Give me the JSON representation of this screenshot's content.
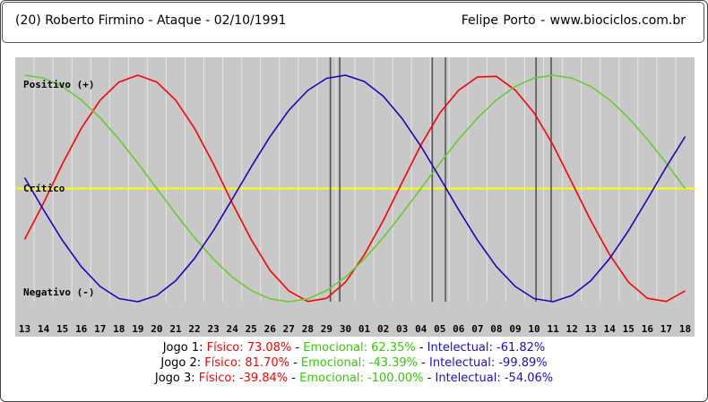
{
  "header": {
    "left": "(20)  Roberto Firmino - Ataque -  02/10/1991",
    "right": "Felipe Porto  -  www.biociclos.com.br"
  },
  "chart_data": {
    "type": "line",
    "x": [
      "13",
      "14",
      "15",
      "16",
      "17",
      "18",
      "19",
      "20",
      "21",
      "22",
      "23",
      "24",
      "25",
      "26",
      "27",
      "28",
      "29",
      "30",
      "01",
      "02",
      "03",
      "04",
      "05",
      "06",
      "07",
      "08",
      "09",
      "10",
      "11",
      "12",
      "13",
      "14",
      "15",
      "16",
      "17",
      "18"
    ],
    "labels": {
      "top": "Positivo (+)",
      "middle": "Crítico",
      "bottom": "Negativo (-)"
    },
    "ylim": [
      -100,
      100
    ],
    "grid": true,
    "series": [
      {
        "key": "fisico",
        "color": "#ff0000",
        "values": [
          -45.0,
          -12.8,
          21.7,
          53.1,
          78.0,
          94.0,
          100.0,
          94.0,
          78.0,
          53.1,
          21.7,
          -12.8,
          -45.0,
          -72.4,
          -90.4,
          -99.8,
          -97.0,
          -82.8,
          -58.6,
          -28.4,
          5.2,
          38.4,
          66.7,
          86.7,
          98.5,
          99.0,
          86.7,
          66.7,
          38.4,
          5.2,
          -28.4,
          -58.6,
          -82.8,
          -97.0,
          -99.8,
          -90.4
        ]
      },
      {
        "key": "emocional",
        "color": "#66cc33",
        "values": [
          100.0,
          97.5,
          90.1,
          78.2,
          62.3,
          43.4,
          22.3,
          0.0,
          -22.3,
          -43.4,
          -62.3,
          -78.2,
          -90.1,
          -97.5,
          -100.0,
          -97.5,
          -90.1,
          -78.2,
          -62.3,
          -43.4,
          -22.3,
          0.0,
          22.3,
          43.4,
          62.3,
          78.2,
          90.1,
          97.5,
          100.0,
          97.5,
          90.1,
          78.2,
          62.3,
          43.4,
          22.3,
          0.0
        ]
      },
      {
        "key": "intelectual",
        "color": "#2200bb",
        "values": [
          9.5,
          -18.9,
          -45.8,
          -69.0,
          -86.6,
          -97.2,
          -100.0,
          -94.5,
          -81.5,
          -61.8,
          -37.2,
          -9.5,
          18.9,
          45.8,
          69.0,
          86.6,
          97.2,
          100.0,
          94.5,
          81.5,
          61.8,
          37.2,
          9.5,
          -18.9,
          -45.8,
          -69.0,
          -86.6,
          -97.2,
          -100.0,
          -94.5,
          -81.5,
          -61.8,
          -37.2,
          -9.5,
          18.9,
          45.8
        ]
      }
    ],
    "markers": [
      16.2,
      16.7,
      21.6,
      22.3,
      27.1,
      27.9
    ]
  },
  "games": [
    {
      "label": "Jogo 1:",
      "fisico": "Físico: 73.08%",
      "emocional": "Emocional: 62.35%",
      "intelectual": "Intelectual: -61.82%"
    },
    {
      "label": "Jogo 2:",
      "fisico": "Físico: 81.70%",
      "emocional": "Emocional: -43.39%",
      "intelectual": "Intelectual: -99.89%"
    },
    {
      "label": "Jogo 3:",
      "fisico": "Físico: -39.84%",
      "emocional": "Emocional: -100.00%",
      "intelectual": "Intelectual: -54.06%"
    }
  ],
  "sep": " - "
}
